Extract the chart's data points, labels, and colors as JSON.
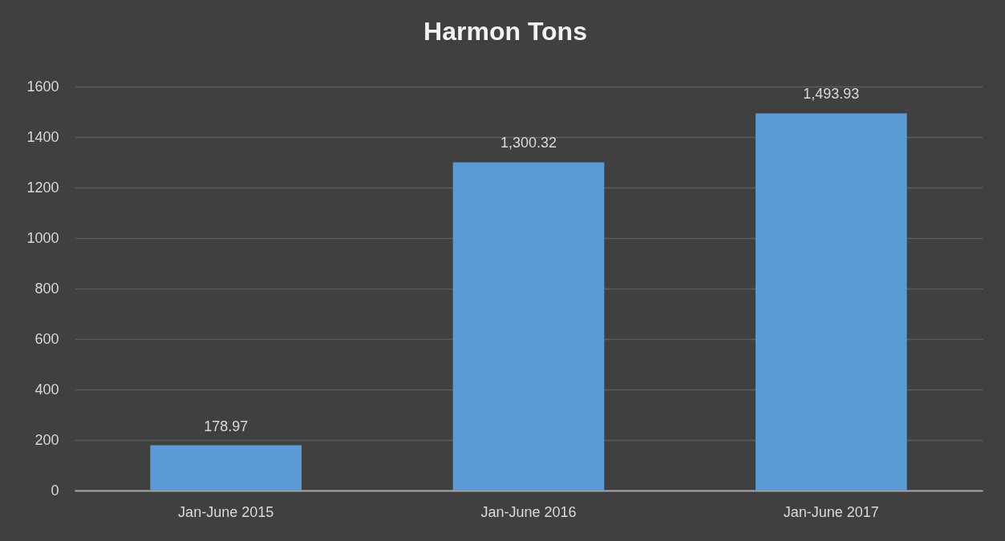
{
  "chart_data": {
    "type": "bar",
    "title": "Harmon Tons",
    "categories": [
      "Jan-June 2015",
      "Jan-June 2016",
      "Jan-June 2017"
    ],
    "values": [
      178.97,
      1300.32,
      1493.93
    ],
    "value_labels": [
      "178.97",
      "1,300.32",
      "1,493.93"
    ],
    "color": "#5b9bd5",
    "ylim": [
      0,
      1600
    ],
    "yticks": [
      0,
      200,
      400,
      600,
      800,
      1000,
      1200,
      1400,
      1600
    ],
    "grid": "y"
  }
}
